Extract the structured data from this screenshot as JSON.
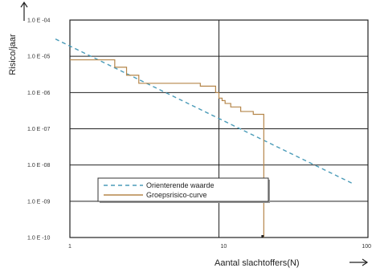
{
  "chart_data": {
    "type": "line",
    "title": "",
    "xlabel": "Aantal slachtoffers(N)",
    "ylabel": "Risico/jaar",
    "xscale": "log",
    "yscale": "log",
    "xlim": [
      1,
      100
    ],
    "ylim": [
      1e-10,
      0.0001
    ],
    "grid": true,
    "x_tick_labels": [
      {
        "value": 1,
        "label": "1"
      },
      {
        "value": 10,
        "label": "10"
      },
      {
        "value": 100,
        "label": "100"
      }
    ],
    "y_tick_labels": [
      {
        "value": 0.0001,
        "label": "1.0 E -04"
      },
      {
        "value": 1e-05,
        "label": "1.0 E -05"
      },
      {
        "value": 1e-06,
        "label": "1.0 E -06"
      },
      {
        "value": 1e-07,
        "label": "1.0 E -07"
      },
      {
        "value": 1e-08,
        "label": "1.0 E -08"
      },
      {
        "value": 1e-09,
        "label": "1.0 E -09"
      },
      {
        "value": 1e-10,
        "label": "1.0 E -10"
      }
    ],
    "legend_position": "bottom-left",
    "series": [
      {
        "name": "Orienterende waarde",
        "style": "dashed",
        "color": "#4a9bb8",
        "x": [
          0.8,
          80
        ],
        "y": [
          3e-05,
          3e-09
        ]
      },
      {
        "name": "Groepsrisico-curve",
        "style": "step",
        "color": "#b5864a",
        "x": [
          1,
          2,
          2,
          2.4,
          2.4,
          2.9,
          2.9,
          7.5,
          7.5,
          9.5,
          9.5,
          10,
          10,
          10.5,
          10.5,
          11,
          11,
          12,
          12,
          14,
          14,
          17,
          17,
          20,
          20
        ],
        "y": [
          8e-06,
          8e-06,
          5e-06,
          5e-06,
          3e-06,
          3e-06,
          1.8e-06,
          1.8e-06,
          1.5e-06,
          1.5e-06,
          1e-06,
          1e-06,
          7e-07,
          7e-07,
          6e-07,
          6e-07,
          5e-07,
          5e-07,
          4e-07,
          4e-07,
          3e-07,
          3e-07,
          2.5e-07,
          2.5e-07,
          1e-10
        ]
      }
    ]
  }
}
